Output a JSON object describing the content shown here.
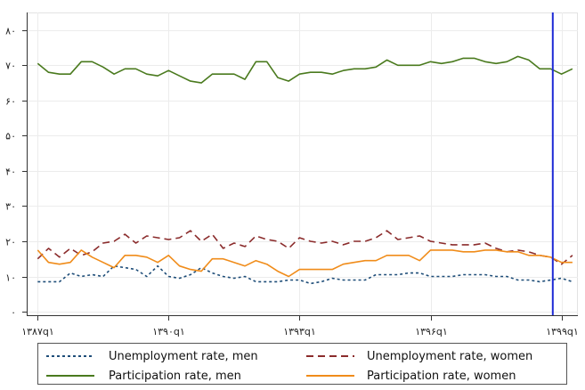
{
  "chart_data": {
    "type": "line",
    "x_ticks": [
      {
        "x": 0,
        "label": "۱۳۸۷q۱"
      },
      {
        "x": 12,
        "label": "۱۳۹۰q۱"
      },
      {
        "x": 24,
        "label": "۱۳۹۳q۱"
      },
      {
        "x": 36,
        "label": "۱۳۹۶q۱"
      },
      {
        "x": 48,
        "label": "۱۳۹۹q۱"
      }
    ],
    "y_ticks": [
      {
        "value": 0,
        "label": "۰"
      },
      {
        "value": 10,
        "label": "۱۰"
      },
      {
        "value": 20,
        "label": "۲۰"
      },
      {
        "value": 30,
        "label": "۳۰"
      },
      {
        "value": 40,
        "label": "۴۰"
      },
      {
        "value": 50,
        "label": "۵۰"
      },
      {
        "value": 60,
        "label": "۶۰"
      },
      {
        "value": 70,
        "label": "۷۰"
      },
      {
        "value": 80,
        "label": "۸۰"
      }
    ],
    "xlim": [
      -1,
      49.5
    ],
    "ylim": [
      -1,
      85
    ],
    "grid": true,
    "vertical_marker": {
      "x": 47.2,
      "color": "#1f2bd6"
    },
    "x": [
      0,
      1,
      2,
      3,
      4,
      5,
      6,
      7,
      8,
      9,
      10,
      11,
      12,
      13,
      14,
      15,
      16,
      17,
      18,
      19,
      20,
      21,
      22,
      23,
      24,
      25,
      26,
      27,
      28,
      29,
      30,
      31,
      32,
      33,
      34,
      35,
      36,
      37,
      38,
      39,
      40,
      41,
      42,
      43,
      44,
      45,
      46,
      47,
      48,
      49
    ],
    "series": [
      {
        "name": "Unemployment rate, men",
        "color": "#1f4e79",
        "dash": "3,3",
        "values": [
          8.5,
          8.5,
          8.5,
          11,
          10,
          10.5,
          10,
          13,
          12.5,
          12,
          10,
          13,
          10,
          9.5,
          10.5,
          12.5,
          11,
          10,
          9.5,
          10,
          8.5,
          8.5,
          8.5,
          9,
          9,
          8,
          8.5,
          9.5,
          9,
          9,
          9,
          10.5,
          10.5,
          10.5,
          11,
          11,
          10,
          10,
          10,
          10.5,
          10.5,
          10.5,
          10,
          10,
          9,
          9,
          8.5,
          9,
          9.5,
          8.5
        ]
      },
      {
        "name": "Unemployment rate, women",
        "color": "#8b2c2c",
        "dash": "8,5",
        "values": [
          15,
          18,
          15.5,
          18,
          16,
          17,
          19.5,
          20,
          22,
          19.5,
          21.5,
          21,
          20.5,
          21,
          23,
          20,
          22,
          18,
          19.5,
          18.5,
          21.5,
          20.5,
          20,
          18,
          21,
          20,
          19.5,
          20,
          19,
          20,
          20,
          21,
          23,
          20.5,
          21,
          21.5,
          20,
          19.5,
          19,
          19,
          19,
          19.5,
          18,
          17,
          17.5,
          17,
          16,
          15.5,
          13.5,
          16
        ]
      },
      {
        "name": "Participation rate, men",
        "color": "#4a7a1e",
        "dash": "",
        "values": [
          70.5,
          68,
          67.5,
          67.5,
          71,
          71,
          69.5,
          67.5,
          69,
          69,
          67.5,
          67,
          68.5,
          67,
          65.5,
          65,
          67.5,
          67.5,
          67.5,
          66,
          71,
          71,
          66.5,
          65.5,
          67.5,
          68,
          68,
          67.5,
          68.5,
          69,
          69,
          69.5,
          71.5,
          70,
          70,
          70,
          71,
          70.5,
          71,
          72,
          72,
          71,
          70.5,
          71,
          72.5,
          71.5,
          69,
          69,
          67.5,
          69
        ]
      },
      {
        "name": "Participation rate, women",
        "color": "#f08c1a",
        "dash": "",
        "values": [
          17.5,
          14,
          13.5,
          14,
          17.5,
          15.5,
          14,
          12.5,
          16,
          16,
          15.5,
          14,
          16,
          13,
          12,
          11.5,
          15,
          15,
          14,
          13,
          14.5,
          13.5,
          11.5,
          10,
          12,
          12,
          12,
          12,
          13.5,
          14,
          14.5,
          14.5,
          16,
          16,
          16,
          14.5,
          17.5,
          17.5,
          17.5,
          17,
          17,
          17.5,
          17.5,
          17,
          17,
          16,
          16,
          15.5,
          14,
          14
        ]
      }
    ]
  }
}
